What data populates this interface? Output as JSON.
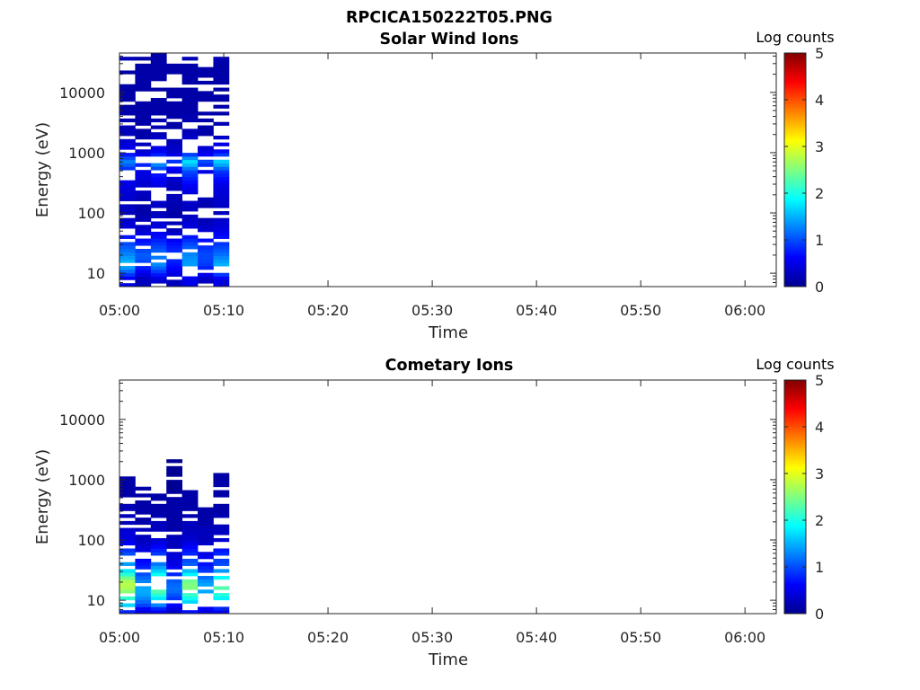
{
  "figure_title": "RPCICA150222T05.PNG",
  "chart_data": [
    {
      "type": "heatmap",
      "title": "Solar Wind Ions",
      "xlabel": "Time",
      "ylabel": "Energy (eV)",
      "yscale": "log",
      "ylim": [
        6,
        45000
      ],
      "xlim": [
        "05:00",
        "06:03"
      ],
      "x_ticks": [
        "05:00",
        "05:10",
        "05:20",
        "05:30",
        "05:40",
        "05:50",
        "06:00"
      ],
      "y_ticks": [
        10,
        100,
        1000,
        10000
      ],
      "y_tick_labels": [
        "10",
        "100",
        "1000",
        "10000"
      ],
      "colorbar": {
        "label": "Log counts",
        "range": [
          0,
          5
        ],
        "ticks": [
          "0",
          "1",
          "2",
          "3",
          "4",
          "5"
        ],
        "colormap": "jet"
      },
      "grid": false,
      "time_bins": [
        "05:00",
        "05:01.5",
        "05:03",
        "05:04.5",
        "05:06",
        "05:07.5",
        "05:09"
      ],
      "time_bin_minutes": 1.5,
      "energy_bin_factor": 1.14,
      "profile_energies": [
        8,
        10,
        14,
        20,
        30,
        50,
        100,
        200,
        300,
        500,
        700,
        1000,
        2000,
        5000,
        10000,
        30000,
        40000
      ],
      "profiles": [
        [
          0.5,
          1.0,
          1.6,
          1.3,
          1.0,
          0.5,
          0.3,
          0.4,
          0.5,
          0.7,
          1.3,
          0.6,
          0.3,
          0.2,
          0.2,
          0.2,
          0.3
        ],
        [
          0.3,
          0.5,
          0.9,
          1.1,
          0.8,
          0.4,
          0.2,
          0.3,
          0.4,
          0.5,
          0.9,
          0.4,
          0.2,
          0.2,
          0.2,
          0.2,
          0.2
        ],
        [
          0.4,
          0.8,
          1.3,
          1.2,
          0.9,
          0.5,
          0.3,
          0.4,
          0.5,
          0.8,
          1.5,
          0.6,
          0.3,
          0.2,
          0.2,
          0.2,
          0.2
        ],
        [
          0.3,
          0.5,
          0.7,
          0.9,
          0.7,
          0.3,
          0.2,
          0.3,
          0.3,
          0.5,
          0.9,
          0.4,
          0.2,
          0.2,
          0.2,
          0.2,
          0.2
        ],
        [
          0.5,
          0.9,
          1.4,
          1.3,
          1.0,
          0.5,
          0.3,
          0.4,
          0.6,
          1.0,
          1.8,
          0.7,
          0.3,
          0.2,
          0.2,
          0.2,
          0.3
        ],
        [
          0.3,
          0.6,
          0.9,
          1.0,
          0.8,
          0.4,
          0.2,
          0.3,
          0.4,
          0.5,
          1.0,
          0.5,
          0.2,
          0.2,
          0.2,
          0.2,
          0.2
        ],
        [
          0.5,
          1.0,
          1.5,
          1.2,
          0.9,
          0.5,
          0.3,
          0.4,
          0.5,
          0.9,
          1.7,
          0.7,
          0.3,
          0.2,
          0.2,
          0.2,
          0.3
        ]
      ],
      "coverage_max_energy": [
        42000,
        38000,
        40000,
        32000,
        40000,
        38000,
        40000
      ],
      "empty_fraction": 0.32
    },
    {
      "type": "heatmap",
      "title": "Cometary Ions",
      "xlabel": "Time",
      "ylabel": "Energy (eV)",
      "yscale": "log",
      "ylim": [
        6,
        45000
      ],
      "xlim": [
        "05:00",
        "06:03"
      ],
      "x_ticks": [
        "05:00",
        "05:10",
        "05:20",
        "05:30",
        "05:40",
        "05:50",
        "06:00"
      ],
      "y_ticks": [
        10,
        100,
        1000,
        10000
      ],
      "y_tick_labels": [
        "10",
        "100",
        "1000",
        "10000"
      ],
      "colorbar": {
        "label": "Log counts",
        "range": [
          0,
          5
        ],
        "ticks": [
          "0",
          "1",
          "2",
          "3",
          "4",
          "5"
        ],
        "colormap": "jet"
      },
      "grid": false,
      "time_bins": [
        "05:00",
        "05:01.5",
        "05:03",
        "05:04.5",
        "05:06",
        "05:07.5",
        "05:09"
      ],
      "time_bin_minutes": 1.5,
      "energy_bin_factor": 1.14,
      "profile_energies": [
        7,
        8,
        10,
        12,
        15,
        20,
        25,
        30,
        40,
        60,
        80,
        100,
        150,
        200,
        300,
        500,
        700,
        1000,
        2000
      ],
      "profiles": [
        [
          0.8,
          1.6,
          2.0,
          2.2,
          2.7,
          2.8,
          2.3,
          1.8,
          1.4,
          1.0,
          0.7,
          0.5,
          0.4,
          0.3,
          0.3,
          0.2,
          0.2,
          0.2,
          0.1
        ],
        [
          0.5,
          0.9,
          1.2,
          1.4,
          1.5,
          1.3,
          1.1,
          0.9,
          0.7,
          0.5,
          0.4,
          0.3,
          0.3,
          0.2,
          0.2,
          0.2,
          0.2,
          0.1,
          0.1
        ],
        [
          0.6,
          1.2,
          1.6,
          2.0,
          2.4,
          2.6,
          2.1,
          1.7,
          1.2,
          0.9,
          0.6,
          0.4,
          0.3,
          0.3,
          0.2,
          0.2,
          0.2,
          0.1,
          0.1
        ],
        [
          0.4,
          0.6,
          0.8,
          1.0,
          1.2,
          1.1,
          0.9,
          0.7,
          0.5,
          0.4,
          0.3,
          0.3,
          0.2,
          0.2,
          0.2,
          0.2,
          0.1,
          0.1,
          0.1
        ],
        [
          0.7,
          1.3,
          1.8,
          2.1,
          2.5,
          2.5,
          2.0,
          1.6,
          1.1,
          0.8,
          0.6,
          0.4,
          0.3,
          0.3,
          0.2,
          0.2,
          0.2,
          0.1,
          0.1
        ],
        [
          0.5,
          0.8,
          1.1,
          1.3,
          1.5,
          1.4,
          1.1,
          0.9,
          0.7,
          0.5,
          0.4,
          0.3,
          0.3,
          0.2,
          0.2,
          0.2,
          0.1,
          0.1,
          0.1
        ],
        [
          0.6,
          1.2,
          1.7,
          2.0,
          2.3,
          2.2,
          1.8,
          1.4,
          1.0,
          0.8,
          0.6,
          0.4,
          0.3,
          0.3,
          0.2,
          0.2,
          0.2,
          0.2,
          0.1
        ]
      ],
      "coverage_max_energy": [
        1150,
        700,
        580,
        2100,
        650,
        320,
        1300
      ],
      "empty_fraction": 0.3
    }
  ]
}
